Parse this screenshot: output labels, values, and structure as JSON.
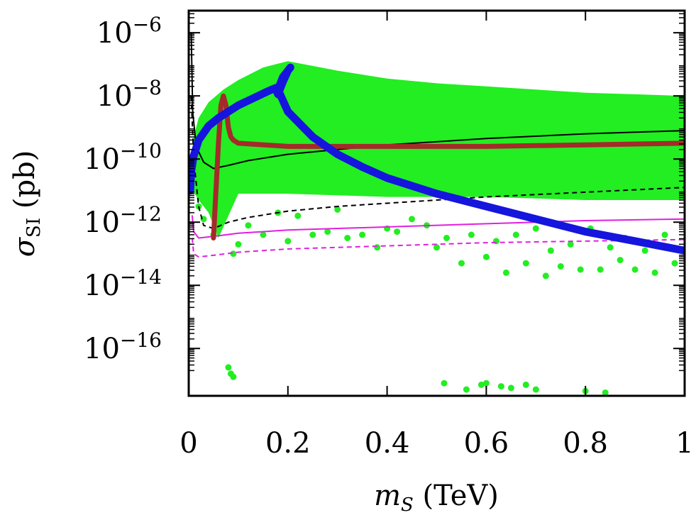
{
  "chart_data": {
    "type": "scatter",
    "xlabel": "m_S (TeV)",
    "ylabel": "σ_SI (pb)",
    "xlabel_parts": {
      "var": "m",
      "sub": "S",
      "rest": " (TeV)"
    },
    "ylabel_parts": {
      "var": "σ",
      "sub": "SI",
      "rest": " (pb)"
    },
    "xlim": [
      0,
      1
    ],
    "ylim_log10": [
      -17.5,
      -5.3
    ],
    "y_scale": "log",
    "grid": false,
    "x_ticks": [
      0,
      0.2,
      0.4,
      0.6,
      0.8,
      1
    ],
    "x_tick_labels": [
      "0",
      "0.2",
      "0.4",
      "0.6",
      "0.8",
      "1"
    ],
    "y_ticks_log10": [
      -6,
      -8,
      -10,
      -12,
      -14,
      -16
    ],
    "y_tick_labels": [
      {
        "base": "10",
        "exp": "−6"
      },
      {
        "base": "10",
        "exp": "−8"
      },
      {
        "base": "10",
        "exp": "−10"
      },
      {
        "base": "10",
        "exp": "−12"
      },
      {
        "base": "10",
        "exp": "−14"
      },
      {
        "base": "10",
        "exp": "−16"
      }
    ],
    "colors": {
      "scan_points": "#22ee22",
      "blue_curve": "#1515dd",
      "brown_curve": "#a52a2a",
      "black_limit": "#000000",
      "magenta_limit": "#e020e0"
    },
    "scan_region": {
      "upper_log10": [
        [
          0.0,
          -10.7
        ],
        [
          0.01,
          -9.3
        ],
        [
          0.02,
          -8.7
        ],
        [
          0.04,
          -8.2
        ],
        [
          0.07,
          -7.8
        ],
        [
          0.1,
          -7.5
        ],
        [
          0.15,
          -7.1
        ],
        [
          0.2,
          -6.9
        ],
        [
          0.3,
          -7.2
        ],
        [
          0.4,
          -7.45
        ],
        [
          0.5,
          -7.6
        ],
        [
          0.6,
          -7.7
        ],
        [
          0.7,
          -7.8
        ],
        [
          0.8,
          -7.9
        ],
        [
          0.9,
          -7.95
        ],
        [
          1.0,
          -8.0
        ]
      ],
      "lower_log10": [
        [
          1.0,
          -11.3
        ],
        [
          0.8,
          -11.3
        ],
        [
          0.6,
          -11.2
        ],
        [
          0.4,
          -11.2
        ],
        [
          0.2,
          -11.1
        ],
        [
          0.1,
          -11.1
        ],
        [
          0.08,
          -11.8
        ],
        [
          0.06,
          -12.5
        ],
        [
          0.04,
          -11.7
        ],
        [
          0.02,
          -11.3
        ],
        [
          0.0,
          -10.8
        ]
      ],
      "outliers": [
        [
          0.02,
          -11.5
        ],
        [
          0.03,
          -11.9
        ],
        [
          0.05,
          -12.4
        ],
        [
          0.09,
          -13.0
        ],
        [
          0.1,
          -12.7
        ],
        [
          0.12,
          -12.1
        ],
        [
          0.15,
          -12.4
        ],
        [
          0.18,
          -11.7
        ],
        [
          0.2,
          -12.6
        ],
        [
          0.22,
          -11.8
        ],
        [
          0.25,
          -12.4
        ],
        [
          0.28,
          -12.3
        ],
        [
          0.3,
          -11.6
        ],
        [
          0.32,
          -12.5
        ],
        [
          0.35,
          -12.4
        ],
        [
          0.38,
          -12.8
        ],
        [
          0.4,
          -12.2
        ],
        [
          0.42,
          -12.3
        ],
        [
          0.45,
          -11.9
        ],
        [
          0.48,
          -12.1
        ],
        [
          0.5,
          -12.8
        ],
        [
          0.52,
          -12.5
        ],
        [
          0.55,
          -13.3
        ],
        [
          0.57,
          -12.4
        ],
        [
          0.6,
          -13.1
        ],
        [
          0.62,
          -12.6
        ],
        [
          0.64,
          -13.6
        ],
        [
          0.66,
          -12.4
        ],
        [
          0.68,
          -13.3
        ],
        [
          0.7,
          -12.2
        ],
        [
          0.72,
          -13.7
        ],
        [
          0.73,
          -12.9
        ],
        [
          0.75,
          -13.4
        ],
        [
          0.77,
          -12.7
        ],
        [
          0.79,
          -13.5
        ],
        [
          0.81,
          -12.2
        ],
        [
          0.83,
          -13.5
        ],
        [
          0.85,
          -12.8
        ],
        [
          0.87,
          -13.2
        ],
        [
          0.88,
          -12.5
        ],
        [
          0.9,
          -13.5
        ],
        [
          0.92,
          -12.9
        ],
        [
          0.94,
          -13.6
        ],
        [
          0.96,
          -12.4
        ],
        [
          0.98,
          -13.3
        ],
        [
          0.08,
          -16.6
        ],
        [
          0.085,
          -16.8
        ],
        [
          0.09,
          -16.9
        ],
        [
          0.515,
          -17.1
        ],
        [
          0.56,
          -17.3
        ],
        [
          0.59,
          -17.15
        ],
        [
          0.6,
          -17.1
        ],
        [
          0.63,
          -17.2
        ],
        [
          0.65,
          -17.25
        ],
        [
          0.68,
          -17.15
        ],
        [
          0.7,
          -17.3
        ],
        [
          0.8,
          -17.35
        ],
        [
          0.84,
          -17.4
        ],
        [
          0.88,
          -17.6
        ],
        [
          0.95,
          -17.65
        ]
      ]
    },
    "series": [
      {
        "color_key": "blue_curve",
        "style": "thick",
        "points_log10": [
          [
            0.003,
            -11.0
          ],
          [
            0.005,
            -10.4
          ],
          [
            0.01,
            -9.9
          ],
          [
            0.02,
            -9.4
          ],
          [
            0.04,
            -8.95
          ],
          [
            0.06,
            -8.7
          ],
          [
            0.08,
            -8.5
          ],
          [
            0.1,
            -8.3
          ],
          [
            0.12,
            -8.15
          ],
          [
            0.14,
            -8.0
          ],
          [
            0.16,
            -7.85
          ],
          [
            0.175,
            -7.75
          ],
          [
            0.18,
            -7.95
          ],
          [
            0.19,
            -7.55
          ],
          [
            0.2,
            -7.2
          ],
          [
            0.205,
            -7.1
          ],
          [
            0.19,
            -7.4
          ],
          [
            0.18,
            -7.8
          ],
          [
            0.2,
            -8.5
          ],
          [
            0.25,
            -9.3
          ],
          [
            0.3,
            -9.85
          ],
          [
            0.35,
            -10.25
          ],
          [
            0.4,
            -10.6
          ],
          [
            0.5,
            -11.1
          ],
          [
            0.6,
            -11.5
          ],
          [
            0.7,
            -11.9
          ],
          [
            0.8,
            -12.3
          ],
          [
            0.9,
            -12.6
          ],
          [
            1.0,
            -12.9
          ]
        ]
      },
      {
        "color_key": "brown_curve",
        "style": "band",
        "points_log10": [
          [
            0.05,
            -12.5
          ],
          [
            0.055,
            -11.0
          ],
          [
            0.06,
            -9.5
          ],
          [
            0.065,
            -8.3
          ],
          [
            0.07,
            -8.0
          ],
          [
            0.075,
            -8.3
          ],
          [
            0.08,
            -9.0
          ],
          [
            0.085,
            -9.3
          ],
          [
            0.09,
            -9.4
          ],
          [
            0.1,
            -9.5
          ],
          [
            0.2,
            -9.6
          ],
          [
            0.4,
            -9.6
          ],
          [
            0.6,
            -9.6
          ],
          [
            0.8,
            -9.55
          ],
          [
            1.0,
            -9.5
          ]
        ]
      },
      {
        "color_key": "black_limit",
        "style": "solid",
        "points_log10": [
          [
            0.005,
            -6.0
          ],
          [
            0.008,
            -8.5
          ],
          [
            0.015,
            -9.6
          ],
          [
            0.03,
            -10.1
          ],
          [
            0.05,
            -10.3
          ],
          [
            0.08,
            -10.2
          ],
          [
            0.12,
            -10.05
          ],
          [
            0.2,
            -9.85
          ],
          [
            0.3,
            -9.7
          ],
          [
            0.4,
            -9.55
          ],
          [
            0.6,
            -9.35
          ],
          [
            0.8,
            -9.2
          ],
          [
            1.0,
            -9.1
          ]
        ]
      },
      {
        "color_key": "black_limit",
        "style": "dashed",
        "points_log10": [
          [
            0.005,
            -8.0
          ],
          [
            0.01,
            -10.0
          ],
          [
            0.02,
            -11.5
          ],
          [
            0.03,
            -12.1
          ],
          [
            0.05,
            -12.2
          ],
          [
            0.08,
            -12.0
          ],
          [
            0.12,
            -11.85
          ],
          [
            0.2,
            -11.65
          ],
          [
            0.3,
            -11.5
          ],
          [
            0.4,
            -11.4
          ],
          [
            0.6,
            -11.2
          ],
          [
            0.8,
            -11.05
          ],
          [
            1.0,
            -10.9
          ]
        ]
      },
      {
        "color_key": "magenta_limit",
        "style": "solid",
        "points_log10": [
          [
            0.007,
            -11.8
          ],
          [
            0.01,
            -12.3
          ],
          [
            0.02,
            -12.5
          ],
          [
            0.05,
            -12.45
          ],
          [
            0.1,
            -12.35
          ],
          [
            0.2,
            -12.25
          ],
          [
            0.4,
            -12.15
          ],
          [
            0.6,
            -12.05
          ],
          [
            0.8,
            -11.95
          ],
          [
            1.0,
            -11.9
          ]
        ]
      },
      {
        "color_key": "magenta_limit",
        "style": "dashed",
        "points_log10": [
          [
            0.007,
            -12.5
          ],
          [
            0.01,
            -13.0
          ],
          [
            0.02,
            -13.1
          ],
          [
            0.05,
            -13.05
          ],
          [
            0.1,
            -12.95
          ],
          [
            0.2,
            -12.85
          ],
          [
            0.4,
            -12.75
          ],
          [
            0.6,
            -12.65
          ],
          [
            0.8,
            -12.6
          ],
          [
            1.0,
            -12.55
          ]
        ]
      }
    ]
  }
}
